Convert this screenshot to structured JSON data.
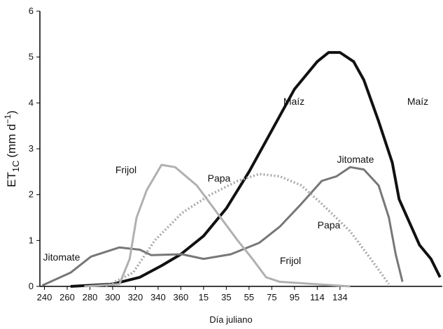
{
  "chart_data": {
    "type": "line",
    "xlabel": "Día juliano",
    "ylabel": [
      "ET",
      "1C",
      "(mm d",
      "−1",
      ")"
    ],
    "xlim": [
      236,
      590
    ],
    "ylim": [
      0,
      6
    ],
    "xticks": [
      240,
      260,
      280,
      300,
      320,
      340,
      360,
      {
        "value": 380,
        "label": "15"
      },
      {
        "value": 400,
        "label": "35"
      },
      {
        "value": 420,
        "label": "55"
      },
      {
        "value": 440,
        "label": "75"
      },
      {
        "value": 460,
        "label": "95"
      },
      {
        "value": 480,
        "label": "114"
      },
      {
        "value": 500,
        "label": "134"
      }
    ],
    "yticks": [
      0,
      1,
      2,
      3,
      4,
      5,
      6
    ],
    "series": [
      {
        "name": "Maíz",
        "color": "#111111",
        "width": 4,
        "dashed": false,
        "x": [
          263,
          300,
          324,
          343,
          360,
          380,
          400,
          420,
          440,
          460,
          480,
          490,
          500,
          512,
          521,
          534,
          546,
          552,
          561,
          570,
          580,
          588
        ],
        "values": [
          0,
          0.05,
          0.2,
          0.45,
          0.7,
          1.1,
          1.7,
          2.5,
          3.4,
          4.3,
          4.9,
          5.1,
          5.1,
          4.9,
          4.5,
          3.6,
          2.7,
          1.9,
          1.4,
          0.9,
          0.6,
          0.2
        ]
      },
      {
        "name": "Jitomate",
        "color": "#777777",
        "width": 3,
        "dashed": false,
        "x": [
          238,
          263,
          281,
          306,
          324,
          334,
          361,
          380,
          404,
          429,
          447,
          466,
          484,
          497,
          509,
          521,
          534,
          543,
          549,
          555
        ],
        "values": [
          0.02,
          0.3,
          0.65,
          0.85,
          0.8,
          0.68,
          0.7,
          0.6,
          0.7,
          0.95,
          1.3,
          1.8,
          2.3,
          2.4,
          2.6,
          2.55,
          2.2,
          1.5,
          0.7,
          0.1
        ]
      },
      {
        "name": "Frijol",
        "color": "#b0b0b0",
        "width": 3,
        "dashed": false,
        "x": [
          275,
          306,
          315,
          321,
          330,
          343,
          355,
          374,
          392,
          410,
          423,
          435,
          447,
          478,
          509
        ],
        "values": [
          0,
          0.05,
          0.6,
          1.5,
          2.1,
          2.65,
          2.6,
          2.2,
          1.6,
          1.0,
          0.6,
          0.2,
          0.1,
          0.05,
          0
        ]
      },
      {
        "name": "Papa",
        "color": "#a8a8a8",
        "width": 3.5,
        "dashed": true,
        "x": [
          294,
          318,
          337,
          361,
          386,
          410,
          429,
          447,
          466,
          484,
          509,
          527,
          543
        ],
        "values": [
          0,
          0.3,
          1.0,
          1.6,
          2.0,
          2.3,
          2.45,
          2.4,
          2.2,
          1.8,
          1.2,
          0.6,
          0.05
        ]
      }
    ],
    "annotations": [
      "Maíz",
      "Frijol",
      "Papa",
      "Jitomate"
    ]
  }
}
